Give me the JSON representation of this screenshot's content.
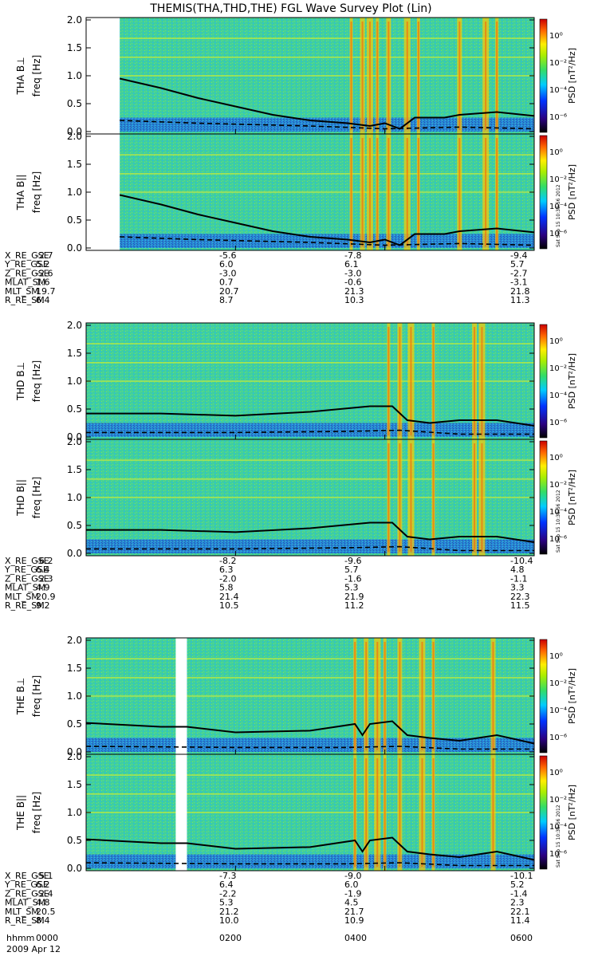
{
  "title": "THEMIS(THA,THD,THE) FGL Wave Survey Plot (Lin)",
  "stamp": "Sat Sep 15 10:38:56 2012",
  "date_label": "2009 Apr 12",
  "colorbar": {
    "label": "PSD [nT²/Hz]",
    "ticks": [
      "10⁰",
      "10⁻²",
      "10⁻⁴",
      "10⁻⁶"
    ]
  },
  "chart_data": [
    {
      "type": "heatmap",
      "probe": "THA",
      "panels": [
        {
          "component": "THA B⊥",
          "ylabel": "freq [Hz]",
          "ylim": [
            0,
            2.0
          ],
          "yticks": [
            "2.0",
            "1.5",
            "1.0",
            "0.5",
            "0.0"
          ]
        },
        {
          "component": "THA B||",
          "ylabel": "freq [Hz]",
          "ylim": [
            0,
            2.0
          ],
          "yticks": [
            "2.0",
            "1.5",
            "1.0",
            "0.5",
            "0.0"
          ]
        }
      ],
      "x_hours": [
        0,
        2,
        4,
        6
      ],
      "line_solid": [
        [
          0.45,
          0.95
        ],
        [
          1.0,
          0.78
        ],
        [
          1.5,
          0.6
        ],
        [
          2.0,
          0.45
        ],
        [
          2.5,
          0.3
        ],
        [
          3.0,
          0.2
        ],
        [
          3.5,
          0.15
        ],
        [
          3.8,
          0.1
        ],
        [
          4.0,
          0.15
        ],
        [
          4.2,
          0.05
        ],
        [
          4.4,
          0.25
        ],
        [
          4.8,
          0.25
        ],
        [
          5.0,
          0.3
        ],
        [
          5.5,
          0.35
        ],
        [
          6.0,
          0.28
        ]
      ],
      "line_dashed": [
        [
          0.45,
          0.2
        ],
        [
          1.5,
          0.15
        ],
        [
          3.0,
          0.1
        ],
        [
          4.0,
          0.05
        ],
        [
          5.0,
          0.08
        ],
        [
          6.0,
          0.05
        ]
      ],
      "bursts_hours": [
        3.55,
        3.7,
        3.8,
        3.9,
        4.05,
        4.3,
        4.45,
        5.0,
        5.35,
        5.5
      ],
      "ephemeris": {
        "labels": [
          "X_RE_GSE",
          "Y_RE_GSE",
          "Z_RE_GSE",
          "MLAT_SM",
          "MLT_SM",
          "R_RE_SM"
        ],
        "columns": [
          [
            "-2.7",
            "5.2",
            "-2.6",
            "1.6",
            "19.7",
            "6.4"
          ],
          [
            "-5.6",
            "6.0",
            "-3.0",
            "0.7",
            "20.7",
            "8.7"
          ],
          [
            "-7.8",
            "6.1",
            "-3.0",
            "-0.6",
            "21.3",
            "10.3"
          ],
          [
            "-9.4",
            "5.7",
            "-2.7",
            "-3.1",
            "21.8",
            "11.3"
          ]
        ]
      }
    },
    {
      "type": "heatmap",
      "probe": "THD",
      "panels": [
        {
          "component": "THD B⊥",
          "ylabel": "freq [Hz]",
          "ylim": [
            0,
            2.0
          ],
          "yticks": [
            "2.0",
            "1.5",
            "1.0",
            "0.5",
            "0.0"
          ]
        },
        {
          "component": "THD B||",
          "ylabel": "freq [Hz]",
          "ylim": [
            0,
            2.0
          ],
          "yticks": [
            "2.0",
            "1.5",
            "1.0",
            "0.5",
            "0.0"
          ]
        }
      ],
      "x_hours": [
        0,
        2,
        4,
        6
      ],
      "line_solid": [
        [
          0.0,
          0.42
        ],
        [
          1.0,
          0.42
        ],
        [
          2.0,
          0.38
        ],
        [
          3.0,
          0.45
        ],
        [
          3.8,
          0.55
        ],
        [
          4.1,
          0.55
        ],
        [
          4.3,
          0.3
        ],
        [
          4.6,
          0.25
        ],
        [
          5.0,
          0.3
        ],
        [
          5.5,
          0.3
        ],
        [
          6.0,
          0.2
        ]
      ],
      "line_dashed": [
        [
          0.0,
          0.08
        ],
        [
          2.0,
          0.08
        ],
        [
          3.5,
          0.1
        ],
        [
          4.2,
          0.12
        ],
        [
          5.0,
          0.05
        ],
        [
          6.0,
          0.05
        ]
      ],
      "bursts_hours": [
        4.05,
        4.2,
        4.35,
        4.65,
        5.2,
        5.3
      ],
      "ephemeris": {
        "labels": [
          "X_RE_GSE",
          "Y_RE_GSE",
          "Z_RE_GSE",
          "MLAT_SM",
          "MLT_SM",
          "R_RE_SM"
        ],
        "columns": [
          [
            "-6.2",
            "6.4",
            "-2.3",
            "4.9",
            "20.9",
            "9.2"
          ],
          [
            "-8.2",
            "6.3",
            "-2.0",
            "5.8",
            "21.4",
            "10.5"
          ],
          [
            "-9.6",
            "5.7",
            "-1.6",
            "5.3",
            "21.9",
            "11.2"
          ],
          [
            "-10.4",
            "4.8",
            "-1.1",
            "3.3",
            "22.3",
            "11.5"
          ]
        ]
      }
    },
    {
      "type": "heatmap",
      "probe": "THE",
      "panels": [
        {
          "component": "THE B⊥",
          "ylabel": "freq [Hz]",
          "ylim": [
            0,
            2.0
          ],
          "yticks": [
            "2.0",
            "1.5",
            "1.0",
            "0.5",
            "0.0"
          ]
        },
        {
          "component": "THE B||",
          "ylabel": "freq [Hz]",
          "ylim": [
            0,
            2.0
          ],
          "yticks": [
            "2.0",
            "1.5",
            "1.0",
            "0.5",
            "0.0"
          ]
        }
      ],
      "x_hours": [
        0,
        2,
        4,
        6
      ],
      "gap_hours": [
        1.2,
        1.35
      ],
      "line_solid": [
        [
          0.0,
          0.52
        ],
        [
          1.0,
          0.45
        ],
        [
          1.35,
          0.45
        ],
        [
          2.0,
          0.35
        ],
        [
          3.0,
          0.38
        ],
        [
          3.6,
          0.5
        ],
        [
          3.7,
          0.3
        ],
        [
          3.8,
          0.5
        ],
        [
          4.1,
          0.55
        ],
        [
          4.3,
          0.3
        ],
        [
          4.6,
          0.25
        ],
        [
          5.0,
          0.2
        ],
        [
          5.5,
          0.3
        ],
        [
          6.0,
          0.15
        ]
      ],
      "line_dashed": [
        [
          0.0,
          0.1
        ],
        [
          2.0,
          0.08
        ],
        [
          3.5,
          0.08
        ],
        [
          4.2,
          0.1
        ],
        [
          5.0,
          0.05
        ],
        [
          6.0,
          0.05
        ]
      ],
      "bursts_hours": [
        3.6,
        3.75,
        3.9,
        4.0,
        4.2,
        4.5,
        4.65,
        5.45
      ],
      "ephemeris": {
        "labels": [
          "X_RE_GSE",
          "Y_RE_GSE",
          "Z_RE_GSE",
          "MLAT_SM",
          "MLT_SM",
          "R_RE_SM"
        ],
        "columns": [
          [
            "-5.1",
            "6.2",
            "-2.4",
            "4.8",
            "20.5",
            "8.4"
          ],
          [
            "-7.3",
            "6.4",
            "-2.2",
            "5.3",
            "21.2",
            "10.0"
          ],
          [
            "-9.0",
            "6.0",
            "-1.9",
            "4.5",
            "21.7",
            "10.9"
          ],
          [
            "-10.1",
            "5.2",
            "-1.4",
            "2.3",
            "22.1",
            "11.4"
          ]
        ]
      }
    }
  ],
  "time_axis": {
    "label": "hhmm",
    "ticks": [
      "0000",
      "0200",
      "0400",
      "0600"
    ]
  }
}
